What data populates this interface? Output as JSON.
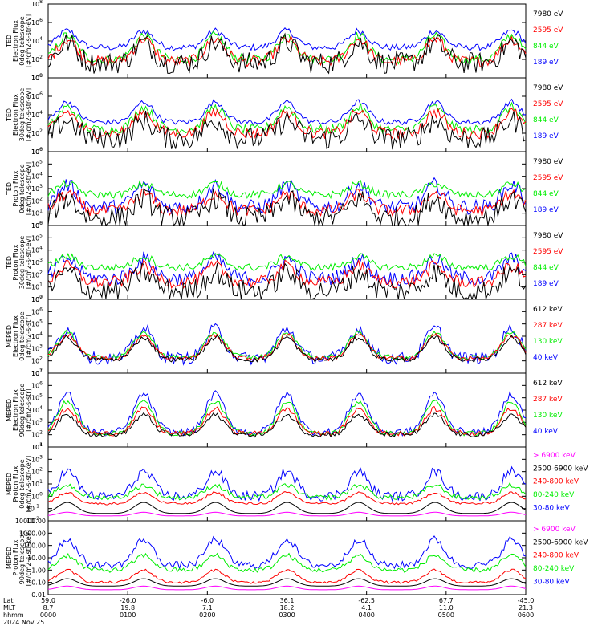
{
  "chart_data": [
    {
      "type": "line",
      "ylabel_lines": [
        "TED",
        "Electron Flux",
        "0deg telescope",
        "[#/cm2-s-str-eV]"
      ],
      "yscale": "log",
      "ylim_exp": [
        0,
        8
      ],
      "yticks": [
        {
          "e": 0,
          "label": "10",
          "sup": "0"
        },
        {
          "e": 2,
          "label": "10",
          "sup": "2"
        },
        {
          "e": 4,
          "label": "10",
          "sup": "4"
        },
        {
          "e": 6,
          "label": "10",
          "sup": "6"
        },
        {
          "e": 8,
          "label": "10",
          "sup": "8"
        }
      ],
      "series": [
        {
          "name": "7980 eV",
          "color": "#000000",
          "base": 1.6,
          "amp": 2.2,
          "noise": 1.2
        },
        {
          "name": "2595 eV",
          "color": "#ff0000",
          "base": 1.8,
          "amp": 2.4,
          "noise": 0.6
        },
        {
          "name": "844 eV",
          "color": "#00ee00",
          "base": 2.0,
          "amp": 2.6,
          "noise": 0.5
        },
        {
          "name": "189 eV",
          "color": "#0000ff",
          "base": 3.3,
          "amp": 1.8,
          "noise": 0.35
        }
      ]
    },
    {
      "type": "line",
      "ylabel_lines": [
        "TED",
        "Electron Flux",
        "30deg telescope",
        "[#/cm2-s-str-eV]"
      ],
      "yscale": "log",
      "ylim_exp": [
        0,
        8
      ],
      "yticks": [
        {
          "e": 0,
          "label": "10",
          "sup": "0"
        },
        {
          "e": 2,
          "label": "10",
          "sup": "2"
        },
        {
          "e": 4,
          "label": "10",
          "sup": "4"
        },
        {
          "e": 6,
          "label": "10",
          "sup": "6"
        },
        {
          "e": 8,
          "label": "10",
          "sup": "8"
        }
      ],
      "series": [
        {
          "name": "7980 eV",
          "color": "#000000",
          "base": 1.4,
          "amp": 2.0,
          "noise": 1.2
        },
        {
          "name": "2595 eV",
          "color": "#ff0000",
          "base": 2.0,
          "amp": 2.3,
          "noise": 0.6
        },
        {
          "name": "844 eV",
          "color": "#00ee00",
          "base": 2.4,
          "amp": 2.4,
          "noise": 0.5
        },
        {
          "name": "189 eV",
          "color": "#0000ff",
          "base": 3.2,
          "amp": 2.2,
          "noise": 0.3
        }
      ]
    },
    {
      "type": "line",
      "ylabel_lines": [
        "TED",
        "Proton Flux",
        "0deg telescope",
        "[#/cm2-s-str-eV]"
      ],
      "yscale": "log",
      "ylim_exp": [
        0,
        6
      ],
      "yticks": [
        {
          "e": 0,
          "label": "10",
          "sup": "0"
        },
        {
          "e": 1,
          "label": "10",
          "sup": "1"
        },
        {
          "e": 2,
          "label": "10",
          "sup": "2"
        },
        {
          "e": 3,
          "label": "10",
          "sup": "3"
        },
        {
          "e": 4,
          "label": "10",
          "sup": "4"
        },
        {
          "e": 5,
          "label": "10",
          "sup": "5"
        },
        {
          "e": 6,
          "label": "10",
          "sup": "6"
        }
      ],
      "series": [
        {
          "name": "7980 eV",
          "color": "#000000",
          "base": 0.6,
          "amp": 1.6,
          "noise": 0.9
        },
        {
          "name": "2595 eV",
          "color": "#ff0000",
          "base": 1.2,
          "amp": 1.4,
          "noise": 0.5
        },
        {
          "name": "844 eV",
          "color": "#00ee00",
          "base": 2.5,
          "amp": 0.9,
          "noise": 0.3
        },
        {
          "name": "189 eV",
          "color": "#0000ff",
          "base": 1.5,
          "amp": 1.8,
          "noise": 0.6
        }
      ]
    },
    {
      "type": "line",
      "ylabel_lines": [
        "TED",
        "Proton Flux",
        "30deg telescope",
        "[#/cm2-s-str-eV]"
      ],
      "yscale": "log",
      "ylim_exp": [
        0,
        6
      ],
      "yticks": [
        {
          "e": 0,
          "label": "10",
          "sup": "0"
        },
        {
          "e": 1,
          "label": "10",
          "sup": "1"
        },
        {
          "e": 2,
          "label": "10",
          "sup": "2"
        },
        {
          "e": 3,
          "label": "10",
          "sup": "3"
        },
        {
          "e": 4,
          "label": "10",
          "sup": "4"
        },
        {
          "e": 5,
          "label": "10",
          "sup": "5"
        },
        {
          "e": 6,
          "label": "10",
          "sup": "6"
        }
      ],
      "series": [
        {
          "name": "7980 eV",
          "color": "#000000",
          "base": 0.7,
          "amp": 1.5,
          "noise": 0.9
        },
        {
          "name": "2595 eV",
          "color": "#ff0000",
          "base": 1.4,
          "amp": 1.3,
          "noise": 0.5
        },
        {
          "name": "844 eV",
          "color": "#00ee00",
          "base": 2.6,
          "amp": 0.9,
          "noise": 0.3
        },
        {
          "name": "189 eV",
          "color": "#0000ff",
          "base": 1.7,
          "amp": 1.6,
          "noise": 0.6
        }
      ]
    },
    {
      "type": "line",
      "ylabel_lines": [
        "MEPED",
        "Electron Flux",
        "0deg telescope",
        "[#/cm2-s-str]"
      ],
      "yscale": "log",
      "ylim_exp": [
        1,
        7
      ],
      "yticks": [
        {
          "e": 1,
          "label": "10",
          "sup": "1"
        },
        {
          "e": 2,
          "label": "10",
          "sup": "2"
        },
        {
          "e": 3,
          "label": "10",
          "sup": "3"
        },
        {
          "e": 4,
          "label": "10",
          "sup": "4"
        },
        {
          "e": 5,
          "label": "10",
          "sup": "5"
        },
        {
          "e": 6,
          "label": "10",
          "sup": "6"
        },
        {
          "e": 7,
          "label": "10",
          "sup": "7"
        }
      ],
      "series": [
        {
          "name": "612 keV",
          "color": "#000000",
          "base": 2.1,
          "amp": 1.8,
          "noise": 0.2
        },
        {
          "name": "287 keV",
          "color": "#ff0000",
          "base": 2.2,
          "amp": 1.9,
          "noise": 0.2
        },
        {
          "name": "130 keV",
          "color": "#00ee00",
          "base": 2.3,
          "amp": 2.0,
          "noise": 0.2
        },
        {
          "name": "40 keV",
          "color": "#0000ff",
          "base": 2.2,
          "amp": 2.4,
          "noise": 0.5
        }
      ]
    },
    {
      "type": "line",
      "ylabel_lines": [
        "MEPED",
        "Electron Flux",
        "90deg telescope",
        "[#/cm2-s-str]"
      ],
      "yscale": "log",
      "ylim_exp": [
        1,
        7
      ],
      "yticks": [
        {
          "e": 1,
          "label": "10",
          "sup": "1"
        },
        {
          "e": 2,
          "label": "10",
          "sup": "2"
        },
        {
          "e": 3,
          "label": "10",
          "sup": "3"
        },
        {
          "e": 4,
          "label": "10",
          "sup": "4"
        },
        {
          "e": 5,
          "label": "10",
          "sup": "5"
        },
        {
          "e": 6,
          "label": "10",
          "sup": "6"
        },
        {
          "e": 7,
          "label": "10",
          "sup": "7"
        }
      ],
      "series": [
        {
          "name": "612 keV",
          "color": "#000000",
          "base": 2.0,
          "amp": 1.6,
          "noise": 0.2
        },
        {
          "name": "287 keV",
          "color": "#ff0000",
          "base": 2.1,
          "amp": 2.0,
          "noise": 0.2
        },
        {
          "name": "130 keV",
          "color": "#00ee00",
          "base": 2.1,
          "amp": 2.6,
          "noise": 0.2
        },
        {
          "name": "40 keV",
          "color": "#0000ff",
          "base": 2.2,
          "amp": 3.1,
          "noise": 0.3
        }
      ]
    },
    {
      "type": "line",
      "ylabel_lines": [
        "MEPED",
        "Proton Flux",
        "0deg telescope",
        "[#/cm2-s-str-keV]"
      ],
      "yscale": "log",
      "ylim_exp": [
        -2,
        4
      ],
      "yticks": [
        {
          "e": -2,
          "label": "10",
          "sup": "-2"
        },
        {
          "e": -1,
          "label": "10",
          "sup": "-1"
        },
        {
          "e": 0,
          "label": "10",
          "sup": "0"
        },
        {
          "e": 1,
          "label": "10",
          "sup": "1"
        },
        {
          "e": 2,
          "label": "10",
          "sup": "2"
        },
        {
          "e": 3,
          "label": "10",
          "sup": "3"
        },
        {
          "e": 4,
          "label": "10",
          "sup": "4"
        }
      ],
      "series": [
        {
          "name": "> 6900 keV",
          "color": "#ff00ff",
          "base": -1.6,
          "amp": 0.3,
          "noise": 0.0
        },
        {
          "name": "2500-6900 keV",
          "color": "#000000",
          "base": -1.4,
          "amp": 0.9,
          "noise": 0.0
        },
        {
          "name": "240-800 keV",
          "color": "#ff0000",
          "base": -0.6,
          "amp": 0.9,
          "noise": 0.1
        },
        {
          "name": "80-240 keV",
          "color": "#00ee00",
          "base": -0.1,
          "amp": 1.0,
          "noise": 0.2
        },
        {
          "name": "30-80 keV",
          "color": "#0000ff",
          "base": 0.0,
          "amp": 2.0,
          "noise": 0.4
        }
      ]
    },
    {
      "type": "line",
      "ylabel_lines": [
        "MEPED",
        "Proton Flux",
        "90deg telescope",
        "[#/cm2-s-str-keV]"
      ],
      "yscale": "log",
      "ylim_exp": [
        -2,
        4
      ],
      "yticks": [
        {
          "e": -2,
          "label": "0.01"
        },
        {
          "e": -1,
          "label": "0.10"
        },
        {
          "e": 0,
          "label": "1.00"
        },
        {
          "e": 1,
          "label": "10.00"
        },
        {
          "e": 2,
          "label": "100.00"
        },
        {
          "e": 3,
          "label": "1000.00"
        },
        {
          "e": 4,
          "label": "10000.00"
        }
      ],
      "series": [
        {
          "name": "> 6900 keV",
          "color": "#ff00ff",
          "base": -1.6,
          "amp": 0.3,
          "noise": 0.0
        },
        {
          "name": "2500-6900 keV",
          "color": "#000000",
          "base": -1.3,
          "amp": 0.6,
          "noise": 0.0
        },
        {
          "name": "240-800 keV",
          "color": "#ff0000",
          "base": -1.0,
          "amp": 1.0,
          "noise": 0.1
        },
        {
          "name": "80-240 keV",
          "color": "#00ee00",
          "base": 0.0,
          "amp": 1.2,
          "noise": 0.2
        },
        {
          "name": "30-80 keV",
          "color": "#0000ff",
          "base": 0.4,
          "amp": 2.1,
          "noise": 0.3
        }
      ]
    }
  ],
  "time_axis": {
    "row_labels": [
      "Lat",
      "MLT",
      "hhmm"
    ],
    "date": "2024 Nov 25",
    "ticks": [
      {
        "lat": "59.0",
        "mlt": "8.7",
        "hhmm": "0000"
      },
      {
        "lat": "-26.0",
        "mlt": "19.8",
        "hhmm": "0100"
      },
      {
        "lat": "-6.0",
        "mlt": "7.1",
        "hhmm": "0200"
      },
      {
        "lat": "36.1",
        "mlt": "18.2",
        "hhmm": "0300"
      },
      {
        "lat": "-62.5",
        "mlt": "4.1",
        "hhmm": "0400"
      },
      {
        "lat": "67.7",
        "mlt": "11.0",
        "hhmm": "0500"
      },
      {
        "lat": "-45.0",
        "mlt": "21.3",
        "hhmm": "0600"
      }
    ]
  }
}
